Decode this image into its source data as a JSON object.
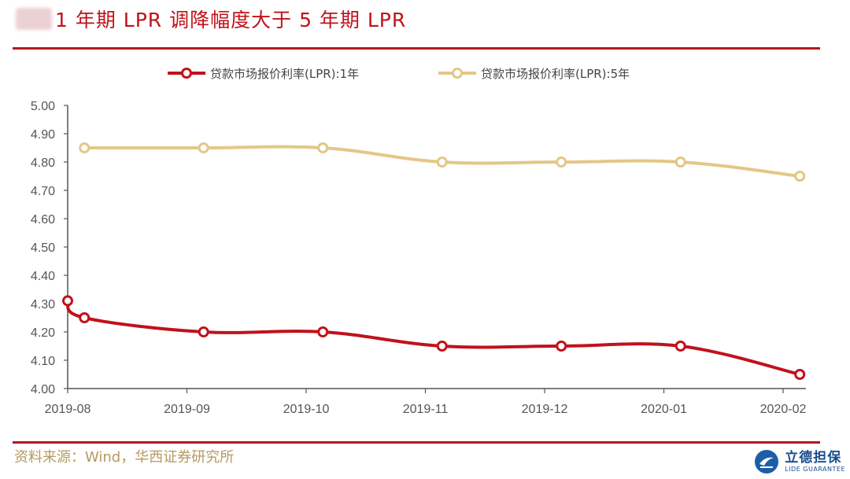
{
  "title": "1 年期 LPR 调降幅度大于 5 年期 LPR",
  "source": "资料来源：Wind，华西证券研究所",
  "logo": {
    "cn": "立德担保",
    "en": "LIDE GUARANTEE",
    "icon": "lide-logo-icon"
  },
  "colors": {
    "title": "#c0121b",
    "series1": "#c0121b",
    "series2": "#e3c787",
    "rule": "#b21820",
    "source": "#b59a63"
  },
  "chart_data": {
    "type": "line",
    "title": "1 年期 LPR 调降幅度大于 5 年期 LPR",
    "xlabel": "",
    "ylabel": "",
    "ylim": [
      4.0,
      5.0
    ],
    "yticks": [
      "4.00",
      "4.10",
      "4.20",
      "4.30",
      "4.40",
      "4.50",
      "4.60",
      "4.70",
      "4.80",
      "4.90",
      "5.00"
    ],
    "categories": [
      "2019-08",
      "2019-09",
      "2019-10",
      "2019-11",
      "2019-12",
      "2020-01",
      "2020-02"
    ],
    "x_range": [
      0,
      6
    ],
    "legend_position": "top",
    "series": [
      {
        "name": "贷款市场报价利率(LPR):1年",
        "color": "#c0121b",
        "x": [
          0,
          0.14,
          1.14,
          2.14,
          3.14,
          4.14,
          5.14,
          6.14
        ],
        "values": [
          4.31,
          4.25,
          4.2,
          4.2,
          4.15,
          4.15,
          4.15,
          4.05
        ]
      },
      {
        "name": "贷款市场报价利率(LPR):5年",
        "color": "#e3c787",
        "x": [
          0.14,
          1.14,
          2.14,
          3.14,
          4.14,
          5.14,
          6.14
        ],
        "values": [
          4.85,
          4.85,
          4.85,
          4.8,
          4.8,
          4.8,
          4.75
        ]
      }
    ]
  }
}
